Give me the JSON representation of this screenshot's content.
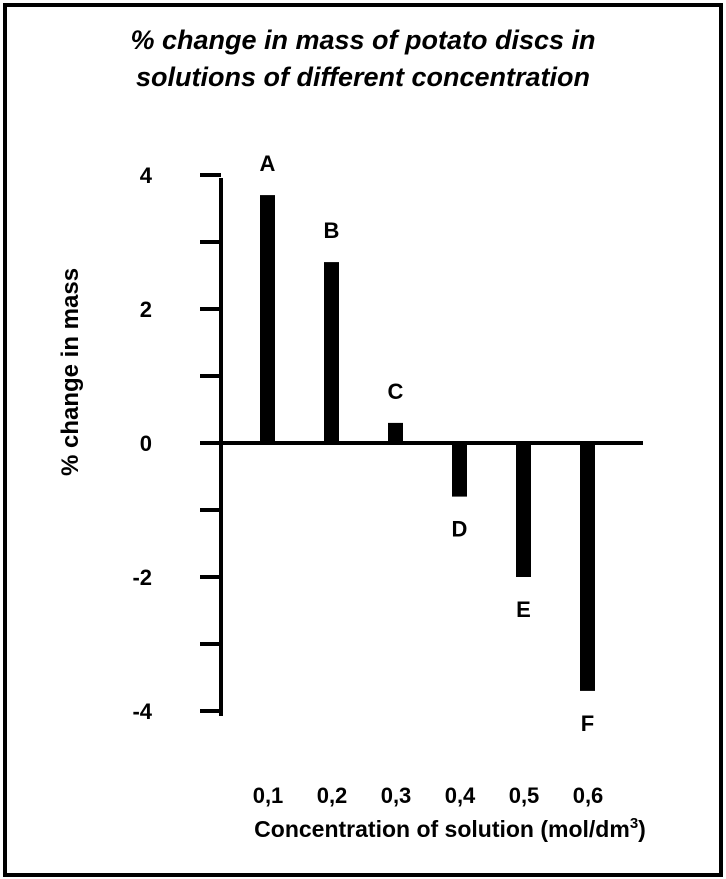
{
  "chart_data": {
    "type": "bar",
    "title_lines": [
      "% change in mass of potato discs in",
      "solutions of different concentration"
    ],
    "xlabel": "Concentration of solution (mol/dm",
    "xlabel_sup": "3",
    "xlabel_close": ")",
    "ylabel": "% change in mass",
    "categories": [
      "0,1",
      "0,2",
      "0,3",
      "0,4",
      "0,5",
      "0,6"
    ],
    "bar_labels": [
      "A",
      "B",
      "C",
      "D",
      "E",
      "F"
    ],
    "values": [
      3.7,
      2.7,
      0.3,
      -0.8,
      -2.0,
      -3.7
    ],
    "y_ticks": [
      4,
      3,
      2,
      1,
      0,
      -1,
      -2,
      -3,
      -4
    ],
    "y_tick_labels": [
      "4",
      "2",
      "0",
      "-2",
      "-4"
    ],
    "y_tick_label_values": [
      4,
      2,
      0,
      -2,
      -4
    ],
    "ylim": [
      -4,
      4
    ],
    "bar_color": "#000000",
    "grid": false
  }
}
